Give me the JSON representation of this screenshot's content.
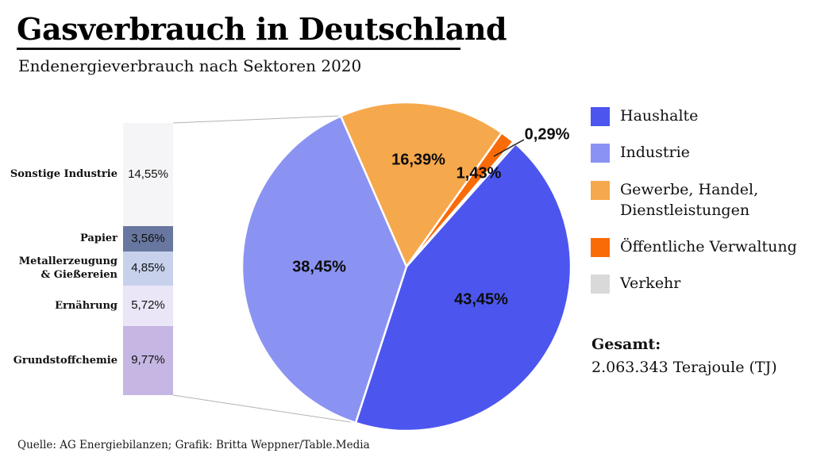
{
  "header": {
    "title": "Gasverbrauch in Deutschland",
    "subtitle": "Endenergieverbrauch nach Sektoren 2020"
  },
  "chart_data": {
    "type": "pie",
    "title": "Gasverbrauch in Deutschland",
    "subtitle": "Endenergieverbrauch nach Sektoren 2020",
    "legend_position": "right",
    "slices": [
      {
        "label": "Haushalte",
        "value": 43.45,
        "display": "43,45%",
        "color": "#4c56ee"
      },
      {
        "label": "Industrie",
        "value": 38.45,
        "display": "38,45%",
        "color": "#8b93f2"
      },
      {
        "label": "Gewerbe, Handel, Dienstleistungen",
        "value": 16.39,
        "display": "16,39%",
        "color": "#f6a84c"
      },
      {
        "label": "Öffentliche Verwaltung",
        "value": 1.43,
        "display": "1,43%",
        "color": "#f96b06"
      },
      {
        "label": "Verkehr",
        "value": 0.29,
        "display": "0,29%",
        "color": "#d9d9d9"
      }
    ],
    "industry_breakdown": {
      "total_value": 38.45,
      "segments": [
        {
          "label": "Sonstige Industrie",
          "value": 14.55,
          "display": "14,55%",
          "color": "#f5f5f7"
        },
        {
          "label": "Papier",
          "value": 3.56,
          "display": "3,56%",
          "color": "#68779f"
        },
        {
          "label": "Metallerzeugung & Gießereien",
          "label_lines": [
            "Metallerzeugung",
            "& Gießereien"
          ],
          "value": 4.85,
          "display": "4,85%",
          "color": "#c7d1ec"
        },
        {
          "label": "Ernährung",
          "value": 5.72,
          "display": "5,72%",
          "color": "#eae5f7"
        },
        {
          "label": "Grundstoffchemie",
          "value": 9.77,
          "display": "9,77%",
          "color": "#c6b6e3"
        }
      ]
    }
  },
  "totals": {
    "label": "Gesamt:",
    "value": "2.063.343 Terajoule (TJ)"
  },
  "footer": {
    "source": "Quelle: AG Energiebilanzen; Grafik: Britta Weppner/Table.Media"
  }
}
